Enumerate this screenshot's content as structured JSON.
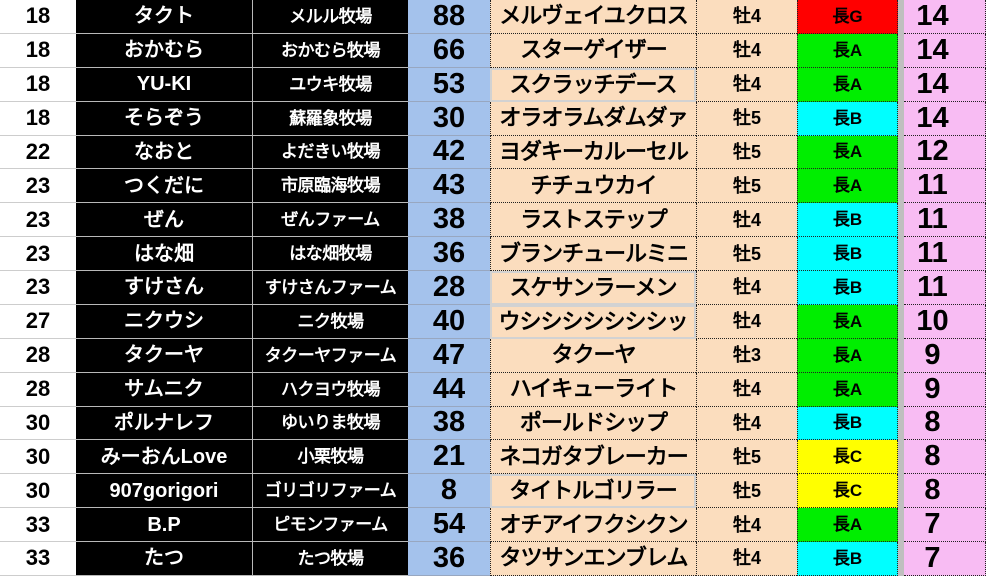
{
  "colors": {
    "red": "#FF0000",
    "green": "#00EE00",
    "cyan": "#00FFFF",
    "yellow": "#FFFF00",
    "score_column": "#A4C2EC",
    "peach_cell": "#FBDDBE",
    "count_column": "#F8BCF3",
    "separator_gray": "#BFBFBF",
    "owner_cell_bg": "#000000",
    "owner_cell_text": "#FFFFFF"
  },
  "table": {
    "rows": [
      {
        "rank": "18",
        "owner_name": "タクト",
        "farm_name": "メルル牧場",
        "score": "88",
        "horse_name": "メルヴェイユクロス",
        "sex_age": "牡4",
        "grade": "長G",
        "grade_color": "red",
        "count": "14",
        "horse_cell_highlight": false
      },
      {
        "rank": "18",
        "owner_name": "おかむら",
        "farm_name": "おかむら牧場",
        "score": "66",
        "horse_name": "スターゲイザー",
        "sex_age": "牡4",
        "grade": "長A",
        "grade_color": "green",
        "count": "14",
        "horse_cell_highlight": false
      },
      {
        "rank": "18",
        "owner_name": "YU-KI",
        "farm_name": "ユウキ牧場",
        "score": "53",
        "horse_name": "スクラッチデース",
        "sex_age": "牡4",
        "grade": "長A",
        "grade_color": "green",
        "count": "14",
        "horse_cell_highlight": true
      },
      {
        "rank": "18",
        "owner_name": "そらぞう",
        "farm_name": "蘇羅象牧場",
        "score": "30",
        "horse_name": "オラオラムダムダァ",
        "sex_age": "牡5",
        "grade": "長B",
        "grade_color": "cyan",
        "count": "14",
        "horse_cell_highlight": false
      },
      {
        "rank": "22",
        "owner_name": "なおと",
        "farm_name": "よだきい牧場",
        "score": "42",
        "horse_name": "ヨダキーカルーセル",
        "sex_age": "牡5",
        "grade": "長A",
        "grade_color": "green",
        "count": "12",
        "horse_cell_highlight": false
      },
      {
        "rank": "23",
        "owner_name": "つくだに",
        "farm_name": "市原臨海牧場",
        "score": "43",
        "horse_name": "チチュウカイ",
        "sex_age": "牡5",
        "grade": "長A",
        "grade_color": "green",
        "count": "11",
        "horse_cell_highlight": false
      },
      {
        "rank": "23",
        "owner_name": "ぜん",
        "farm_name": "ぜんファーム",
        "score": "38",
        "horse_name": "ラストステップ",
        "sex_age": "牡4",
        "grade": "長B",
        "grade_color": "cyan",
        "count": "11",
        "horse_cell_highlight": false
      },
      {
        "rank": "23",
        "owner_name": "はな畑",
        "farm_name": "はな畑牧場",
        "score": "36",
        "horse_name": "ブランチュールミニ",
        "sex_age": "牡5",
        "grade": "長B",
        "grade_color": "cyan",
        "count": "11",
        "horse_cell_highlight": false
      },
      {
        "rank": "23",
        "owner_name": "すけさん",
        "farm_name": "すけさんファーム",
        "score": "28",
        "horse_name": "スケサンラーメン",
        "sex_age": "牡4",
        "grade": "長B",
        "grade_color": "cyan",
        "count": "11",
        "horse_cell_highlight": true
      },
      {
        "rank": "27",
        "owner_name": "ニクウシ",
        "farm_name": "ニク牧場",
        "score": "40",
        "horse_name": "ウシシシシシシシッ",
        "sex_age": "牡4",
        "grade": "長A",
        "grade_color": "green",
        "count": "10",
        "horse_cell_highlight": true
      },
      {
        "rank": "28",
        "owner_name": "タクーヤ",
        "farm_name": "タクーヤファーム",
        "score": "47",
        "horse_name": "タクーヤ",
        "sex_age": "牡3",
        "grade": "長A",
        "grade_color": "green",
        "count": "9",
        "horse_cell_highlight": false
      },
      {
        "rank": "28",
        "owner_name": "サムニク",
        "farm_name": "ハクヨウ牧場",
        "score": "44",
        "horse_name": "ハイキューライト",
        "sex_age": "牡4",
        "grade": "長A",
        "grade_color": "green",
        "count": "9",
        "horse_cell_highlight": false
      },
      {
        "rank": "30",
        "owner_name": "ポルナレフ",
        "farm_name": "ゆいりま牧場",
        "score": "38",
        "horse_name": "ポールドシップ",
        "sex_age": "牡4",
        "grade": "長B",
        "grade_color": "cyan",
        "count": "8",
        "horse_cell_highlight": false
      },
      {
        "rank": "30",
        "owner_name": "みーおんLove",
        "farm_name": "小栗牧場",
        "score": "21",
        "horse_name": "ネコガタブレーカー",
        "sex_age": "牡5",
        "grade": "長C",
        "grade_color": "yellow",
        "count": "8",
        "horse_cell_highlight": false
      },
      {
        "rank": "30",
        "owner_name": "907gorigori",
        "farm_name": "ゴリゴリファーム",
        "score": "8",
        "horse_name": "タイトルゴリラー",
        "sex_age": "牡5",
        "grade": "長C",
        "grade_color": "yellow",
        "count": "8",
        "horse_cell_highlight": true
      },
      {
        "rank": "33",
        "owner_name": "B.P",
        "farm_name": "ピモンファーム",
        "score": "54",
        "horse_name": "オチアイフクシクン",
        "sex_age": "牡4",
        "grade": "長A",
        "grade_color": "green",
        "count": "7",
        "horse_cell_highlight": false
      },
      {
        "rank": "33",
        "owner_name": "たつ",
        "farm_name": "たつ牧場",
        "score": "36",
        "horse_name": "タツサンエンブレム",
        "sex_age": "牡4",
        "grade": "長B",
        "grade_color": "cyan",
        "count": "7",
        "horse_cell_highlight": false
      }
    ]
  }
}
